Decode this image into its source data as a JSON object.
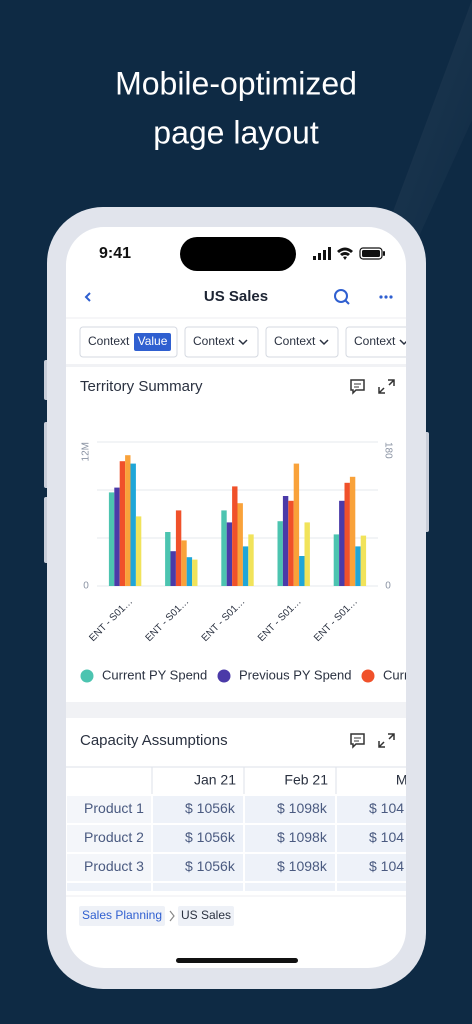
{
  "hero": {
    "title_lines": [
      "Mobile-optimized",
      "page layout"
    ]
  },
  "status_bar": {
    "time": "9:41"
  },
  "nav": {
    "title": "US Sales"
  },
  "filters": [
    {
      "label": "Context",
      "value": "Value"
    },
    {
      "label": "Context"
    },
    {
      "label": "Context"
    },
    {
      "label": "Context"
    }
  ],
  "chart_data": {
    "type": "bar",
    "title": "Territory Summary",
    "categories": [
      "ENT - S01…",
      "ENT - S01…",
      "ENT - S01…",
      "ENT - S01…",
      "ENT - S01…"
    ],
    "series": [
      {
        "name": "Current PY Spend",
        "color": "#4cc4b0",
        "values": [
          7.8,
          4.5,
          6.3,
          5.4,
          4.3
        ]
      },
      {
        "name": "Previous PY Spend",
        "color": "#4b3aa8",
        "values": [
          8.2,
          2.9,
          5.3,
          7.5,
          7.1
        ]
      },
      {
        "name": "Curr",
        "color": "#f0512a",
        "values": [
          10.4,
          6.3,
          8.3,
          7.1,
          8.6
        ]
      },
      {
        "color": "#f9a23a",
        "values": [
          10.9,
          3.8,
          6.9,
          10.2,
          9.1
        ]
      },
      {
        "color": "#1fa6d8",
        "values": [
          10.2,
          2.4,
          3.3,
          2.5,
          3.3
        ]
      },
      {
        "color": "#f1e35a",
        "values": [
          5.8,
          2.2,
          4.3,
          5.3,
          4.2
        ]
      }
    ],
    "ylim": [
      0,
      12
    ],
    "yticks": [
      0,
      {
        "value": 12,
        "label": "12M"
      }
    ],
    "y2lim": [
      0,
      180
    ],
    "y2ticks": [
      0,
      180
    ],
    "grid": true
  },
  "table": {
    "title": "Capacity Assumptions",
    "columns": [
      "Jan 21",
      "Feb 21",
      "Mar"
    ],
    "rows": [
      {
        "label": "Product 1",
        "cells": [
          "$ 1056k",
          "$ 1098k",
          "$ 104"
        ]
      },
      {
        "label": "Product 2",
        "cells": [
          "$ 1056k",
          "$ 1098k",
          "$ 104"
        ]
      },
      {
        "label": "Product 3",
        "cells": [
          "$ 1056k",
          "$ 1098k",
          "$ 104"
        ]
      }
    ]
  },
  "breadcrumb": [
    "Sales Planning",
    "US Sales"
  ]
}
